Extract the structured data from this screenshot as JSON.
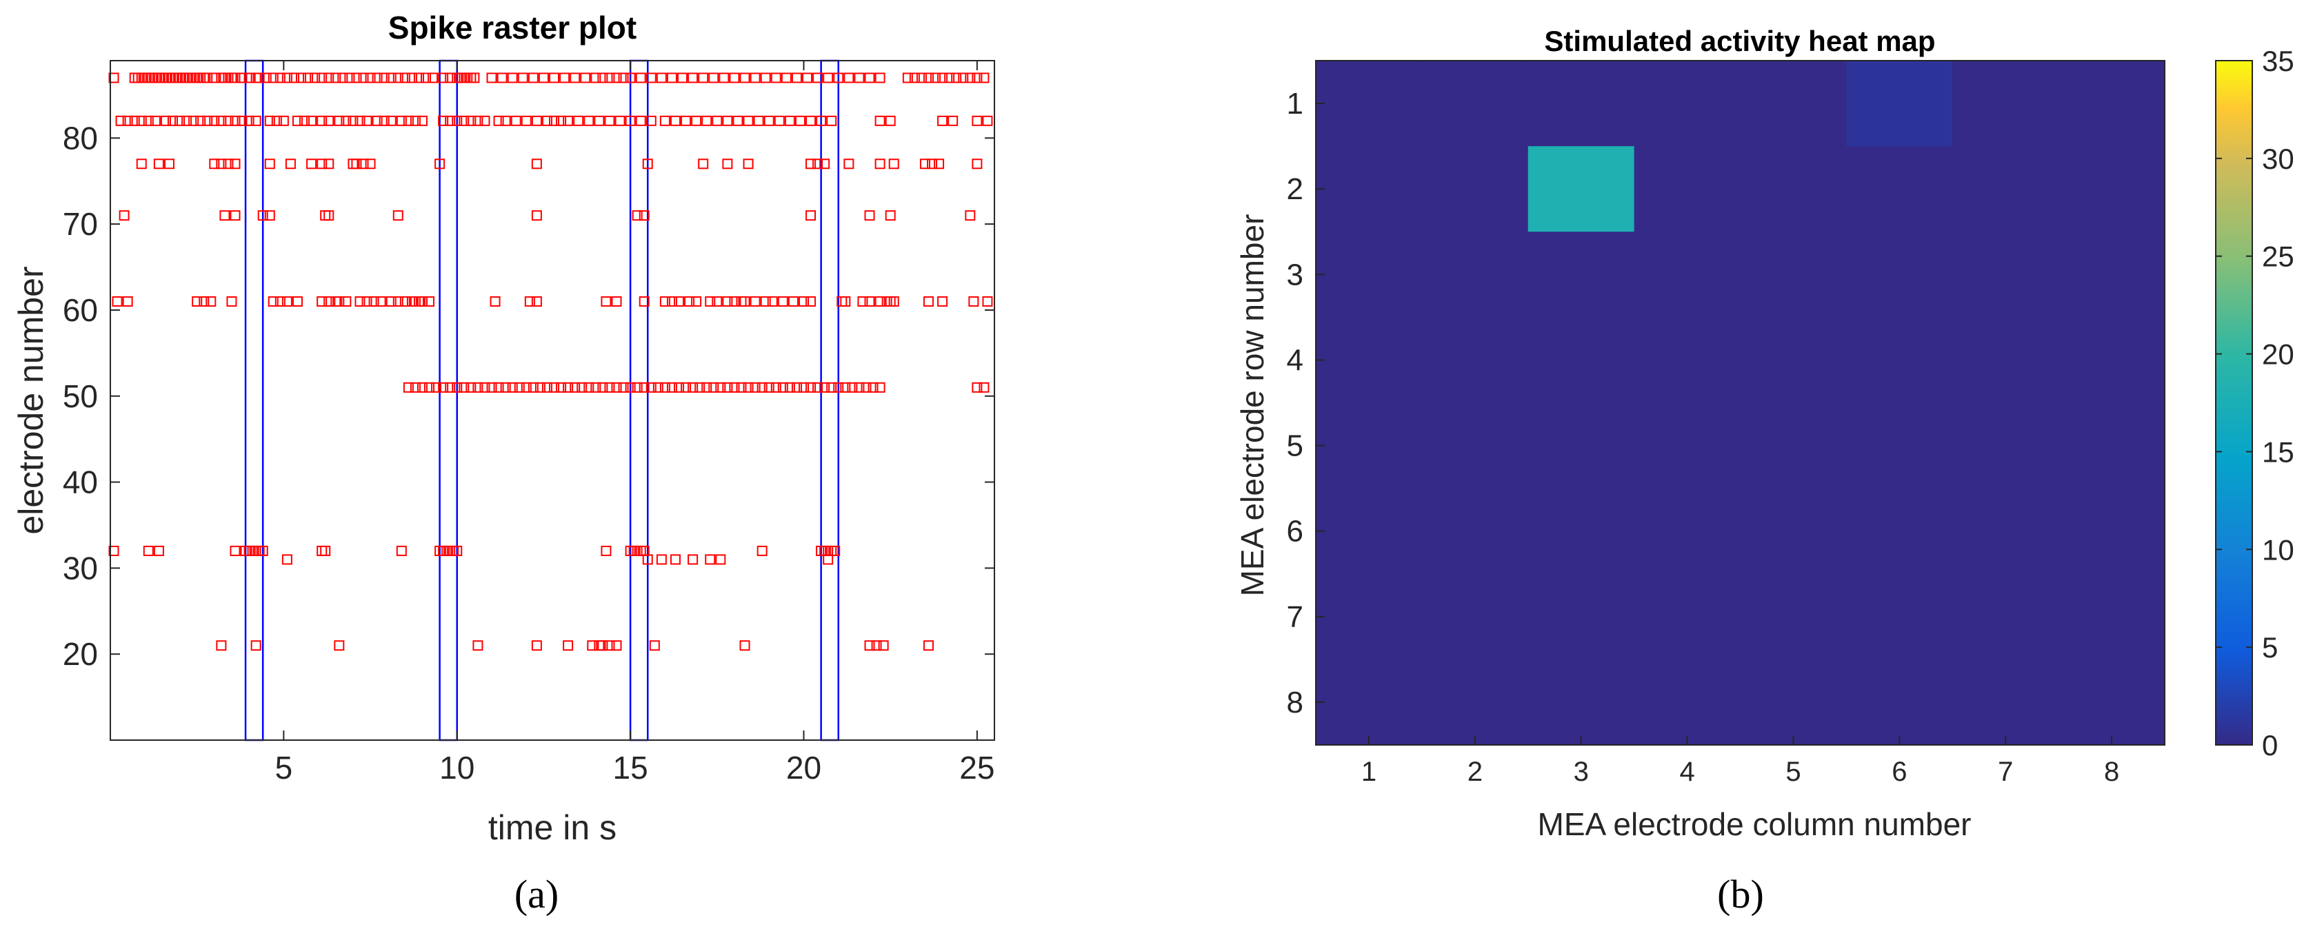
{
  "chart_data": [
    {
      "type": "scatter",
      "panel_label": "(a)",
      "title": "Spike raster plot",
      "xlabel": "time in s",
      "ylabel": "electrode number",
      "xlim": [
        0,
        25.5
      ],
      "ylim": [
        10,
        89
      ],
      "xticks": [
        5,
        10,
        15,
        20,
        25
      ],
      "yticks": [
        20,
        30,
        40,
        50,
        60,
        70,
        80
      ],
      "marker": "open-square",
      "marker_color": "#ff0000",
      "stim_color": "#0000ff",
      "stimulation_windows": [
        [
          3.9,
          4.4
        ],
        [
          9.5,
          10.0
        ],
        [
          15.0,
          15.5
        ],
        [
          20.5,
          21.0
        ]
      ],
      "series": [
        {
          "electrode": 87,
          "times": [
            0.1,
            0.7,
            0.8,
            0.9,
            1.0,
            1.1,
            1.2,
            1.3,
            1.4,
            1.5,
            1.6,
            1.7,
            1.8,
            1.9,
            2.0,
            2.1,
            2.2,
            2.3,
            2.4,
            2.5,
            2.6,
            2.7,
            2.8,
            3.0,
            3.2,
            3.3,
            3.4,
            3.5,
            3.6,
            3.8,
            4.0,
            4.2,
            4.3,
            4.5,
            4.7,
            4.9,
            5.1,
            5.3,
            5.5,
            5.7,
            5.9,
            6.1,
            6.3,
            6.5,
            6.7,
            6.9,
            7.1,
            7.3,
            7.5,
            7.7,
            7.9,
            8.1,
            8.3,
            8.5,
            8.7,
            8.9,
            9.1,
            9.3,
            9.6,
            9.8,
            10.0,
            10.1,
            10.2,
            10.3,
            10.4,
            10.5,
            11.0,
            11.3,
            11.6,
            11.9,
            12.2,
            12.5,
            12.8,
            13.1,
            13.4,
            13.7,
            14.0,
            14.2,
            14.4,
            14.6,
            14.8,
            15.0,
            15.3,
            15.6,
            15.9,
            16.2,
            16.5,
            16.8,
            17.1,
            17.4,
            17.7,
            18.0,
            18.3,
            18.6,
            18.9,
            19.2,
            19.5,
            19.8,
            20.1,
            20.4,
            20.7,
            21.0,
            21.3,
            21.6,
            21.9,
            22.2,
            23.0,
            23.2,
            23.4,
            23.6,
            23.8,
            24.0,
            24.2,
            24.4,
            24.6,
            24.8,
            25.0,
            25.2
          ]
        },
        {
          "electrode": 82,
          "times": [
            0.3,
            0.5,
            0.7,
            0.9,
            1.1,
            1.3,
            1.6,
            1.8,
            2.0,
            2.2,
            2.4,
            2.6,
            2.8,
            3.0,
            3.2,
            3.4,
            3.6,
            3.8,
            4.0,
            4.2,
            4.6,
            4.8,
            5.0,
            5.4,
            5.6,
            5.8,
            6.1,
            6.3,
            6.6,
            6.8,
            7.0,
            7.2,
            7.4,
            7.7,
            7.9,
            8.1,
            8.4,
            8.6,
            8.8,
            9.0,
            9.6,
            9.8,
            10.0,
            10.2,
            10.4,
            10.6,
            10.8,
            11.2,
            11.4,
            11.7,
            12.0,
            12.3,
            12.6,
            12.8,
            13.0,
            13.2,
            13.5,
            13.8,
            14.1,
            14.4,
            14.7,
            15.0,
            15.3,
            15.6,
            16.0,
            16.3,
            16.6,
            16.9,
            17.2,
            17.5,
            17.8,
            18.1,
            18.4,
            18.7,
            19.0,
            19.3,
            19.6,
            19.9,
            20.2,
            20.5,
            20.8,
            22.2,
            22.5,
            24.0,
            24.3,
            25.0,
            25.3
          ]
        },
        {
          "electrode": 77,
          "times": [
            0.9,
            1.4,
            1.7,
            3.0,
            3.2,
            3.4,
            3.6,
            4.6,
            5.2,
            5.8,
            6.1,
            6.3,
            7.0,
            7.1,
            7.3,
            7.5,
            9.5,
            12.3,
            15.5,
            17.1,
            17.8,
            18.4,
            20.2,
            20.4,
            20.6,
            21.3,
            22.2,
            22.6,
            23.5,
            23.7,
            23.9,
            25.0
          ]
        },
        {
          "electrode": 71,
          "times": [
            0.4,
            3.3,
            3.6,
            4.4,
            4.6,
            6.2,
            6.3,
            8.3,
            12.3,
            15.2,
            15.4,
            20.2,
            21.9,
            22.5,
            24.8
          ]
        },
        {
          "electrode": 61,
          "times": [
            0.2,
            0.5,
            2.5,
            2.7,
            2.9,
            3.5,
            4.7,
            4.9,
            5.1,
            5.4,
            6.1,
            6.3,
            6.5,
            6.6,
            6.8,
            7.2,
            7.4,
            7.6,
            7.8,
            8.1,
            8.3,
            8.5,
            8.7,
            8.8,
            8.9,
            9.0,
            9.2,
            11.1,
            12.1,
            12.3,
            14.3,
            14.6,
            15.4,
            16.0,
            16.2,
            16.4,
            16.7,
            16.9,
            17.3,
            17.5,
            17.8,
            18.0,
            18.2,
            18.3,
            18.6,
            18.9,
            19.1,
            19.4,
            19.7,
            20.0,
            20.2,
            21.1,
            21.2,
            21.7,
            21.9,
            22.2,
            22.4,
            22.5,
            22.6,
            23.6,
            24.0,
            24.9,
            25.3
          ]
        },
        {
          "electrode": 51,
          "times": [
            8.6,
            8.8,
            9.0,
            9.2,
            9.4,
            9.6,
            9.8,
            10.0,
            10.2,
            10.4,
            10.6,
            10.8,
            11.0,
            11.2,
            11.4,
            11.6,
            11.8,
            12.0,
            12.2,
            12.4,
            12.6,
            12.8,
            13.0,
            13.2,
            13.4,
            13.6,
            13.8,
            14.0,
            14.2,
            14.4,
            14.6,
            14.8,
            15.0,
            15.2,
            15.4,
            15.6,
            15.8,
            16.0,
            16.2,
            16.4,
            16.6,
            16.8,
            17.0,
            17.2,
            17.4,
            17.6,
            17.8,
            18.0,
            18.2,
            18.4,
            18.6,
            18.8,
            19.0,
            19.2,
            19.4,
            19.6,
            19.8,
            20.0,
            20.2,
            20.4,
            20.6,
            20.8,
            21.0,
            21.2,
            21.4,
            21.6,
            21.8,
            22.0,
            22.2,
            25.0,
            25.2
          ]
        },
        {
          "electrode": 32,
          "times": [
            0.1,
            1.1,
            1.4,
            3.6,
            3.9,
            4.0,
            4.1,
            4.2,
            4.3,
            4.4,
            6.1,
            6.2,
            8.4,
            9.5,
            9.6,
            9.7,
            9.8,
            9.9,
            10.0,
            14.3,
            15.0,
            15.1,
            15.2,
            15.3,
            15.4,
            18.8,
            20.5,
            20.6,
            20.7,
            20.8,
            20.9
          ]
        },
        {
          "electrode": 31,
          "times": [
            5.1,
            15.5,
            15.9,
            16.3,
            16.8,
            17.3,
            17.6,
            20.7
          ]
        },
        {
          "electrode": 21,
          "times": [
            3.2,
            4.2,
            6.6,
            10.6,
            12.3,
            13.2,
            13.9,
            14.1,
            14.2,
            14.4,
            14.6,
            15.7,
            18.3,
            21.9,
            22.1,
            22.3,
            23.6
          ]
        }
      ]
    },
    {
      "type": "heatmap",
      "panel_label": "(b)",
      "title": "Stimulated activity heat map",
      "xlabel": "MEA electrode column number",
      "ylabel": "MEA electrode row number",
      "x_categories": [
        "1",
        "2",
        "3",
        "4",
        "5",
        "6",
        "7",
        "8"
      ],
      "y_categories": [
        "1",
        "2",
        "3",
        "4",
        "5",
        "6",
        "7",
        "8"
      ],
      "colorbar_range": [
        0,
        35
      ],
      "colorbar_ticks": [
        0,
        5,
        10,
        15,
        20,
        25,
        30,
        35
      ],
      "colormap": "parula",
      "values": [
        [
          0,
          0,
          0,
          0,
          0,
          1,
          0,
          0
        ],
        [
          0,
          0,
          18,
          0,
          0,
          0,
          0,
          0
        ],
        [
          0,
          0,
          0,
          0,
          0,
          0,
          0,
          0
        ],
        [
          0,
          0,
          0,
          0,
          0,
          0,
          0,
          0
        ],
        [
          0,
          0,
          0,
          0,
          0,
          0,
          0,
          0
        ],
        [
          0,
          0,
          0,
          0,
          0,
          0,
          0,
          0
        ],
        [
          0,
          0,
          0,
          0,
          0,
          0,
          0,
          0
        ],
        [
          0,
          0,
          0,
          0,
          0,
          0,
          0,
          0
        ]
      ]
    }
  ]
}
